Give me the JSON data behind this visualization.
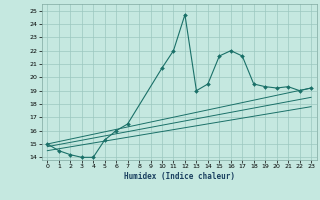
{
  "xlabel": "Humidex (Indice chaleur)",
  "bg_color": "#c5e8e0",
  "grid_color": "#9cc8c0",
  "line_color": "#1a7068",
  "xlim": [
    -0.5,
    23.5
  ],
  "ylim": [
    13.8,
    25.5
  ],
  "yticks": [
    14,
    15,
    16,
    17,
    18,
    19,
    20,
    21,
    22,
    23,
    24,
    25
  ],
  "xticks": [
    0,
    1,
    2,
    3,
    4,
    5,
    6,
    7,
    8,
    9,
    10,
    11,
    12,
    13,
    14,
    15,
    16,
    17,
    18,
    19,
    20,
    21,
    22,
    23
  ],
  "series": [
    {
      "x": [
        0,
        1,
        2,
        3,
        4,
        5,
        6,
        7,
        10,
        11,
        12,
        13,
        14,
        15,
        16,
        17,
        18,
        19,
        20,
        21,
        22,
        23
      ],
      "y": [
        15,
        14.5,
        14.2,
        14.0,
        14.0,
        15.3,
        16.0,
        16.5,
        20.7,
        22.0,
        24.7,
        19.0,
        19.5,
        21.6,
        22.0,
        21.6,
        19.5,
        19.3,
        19.2,
        19.3,
        19.0,
        19.2
      ],
      "has_markers": true
    },
    {
      "x": [
        0,
        23
      ],
      "y": [
        15.0,
        19.2
      ],
      "has_markers": false
    },
    {
      "x": [
        0,
        23
      ],
      "y": [
        14.8,
        18.5
      ],
      "has_markers": false
    },
    {
      "x": [
        0,
        23
      ],
      "y": [
        14.5,
        17.8
      ],
      "has_markers": false
    }
  ]
}
